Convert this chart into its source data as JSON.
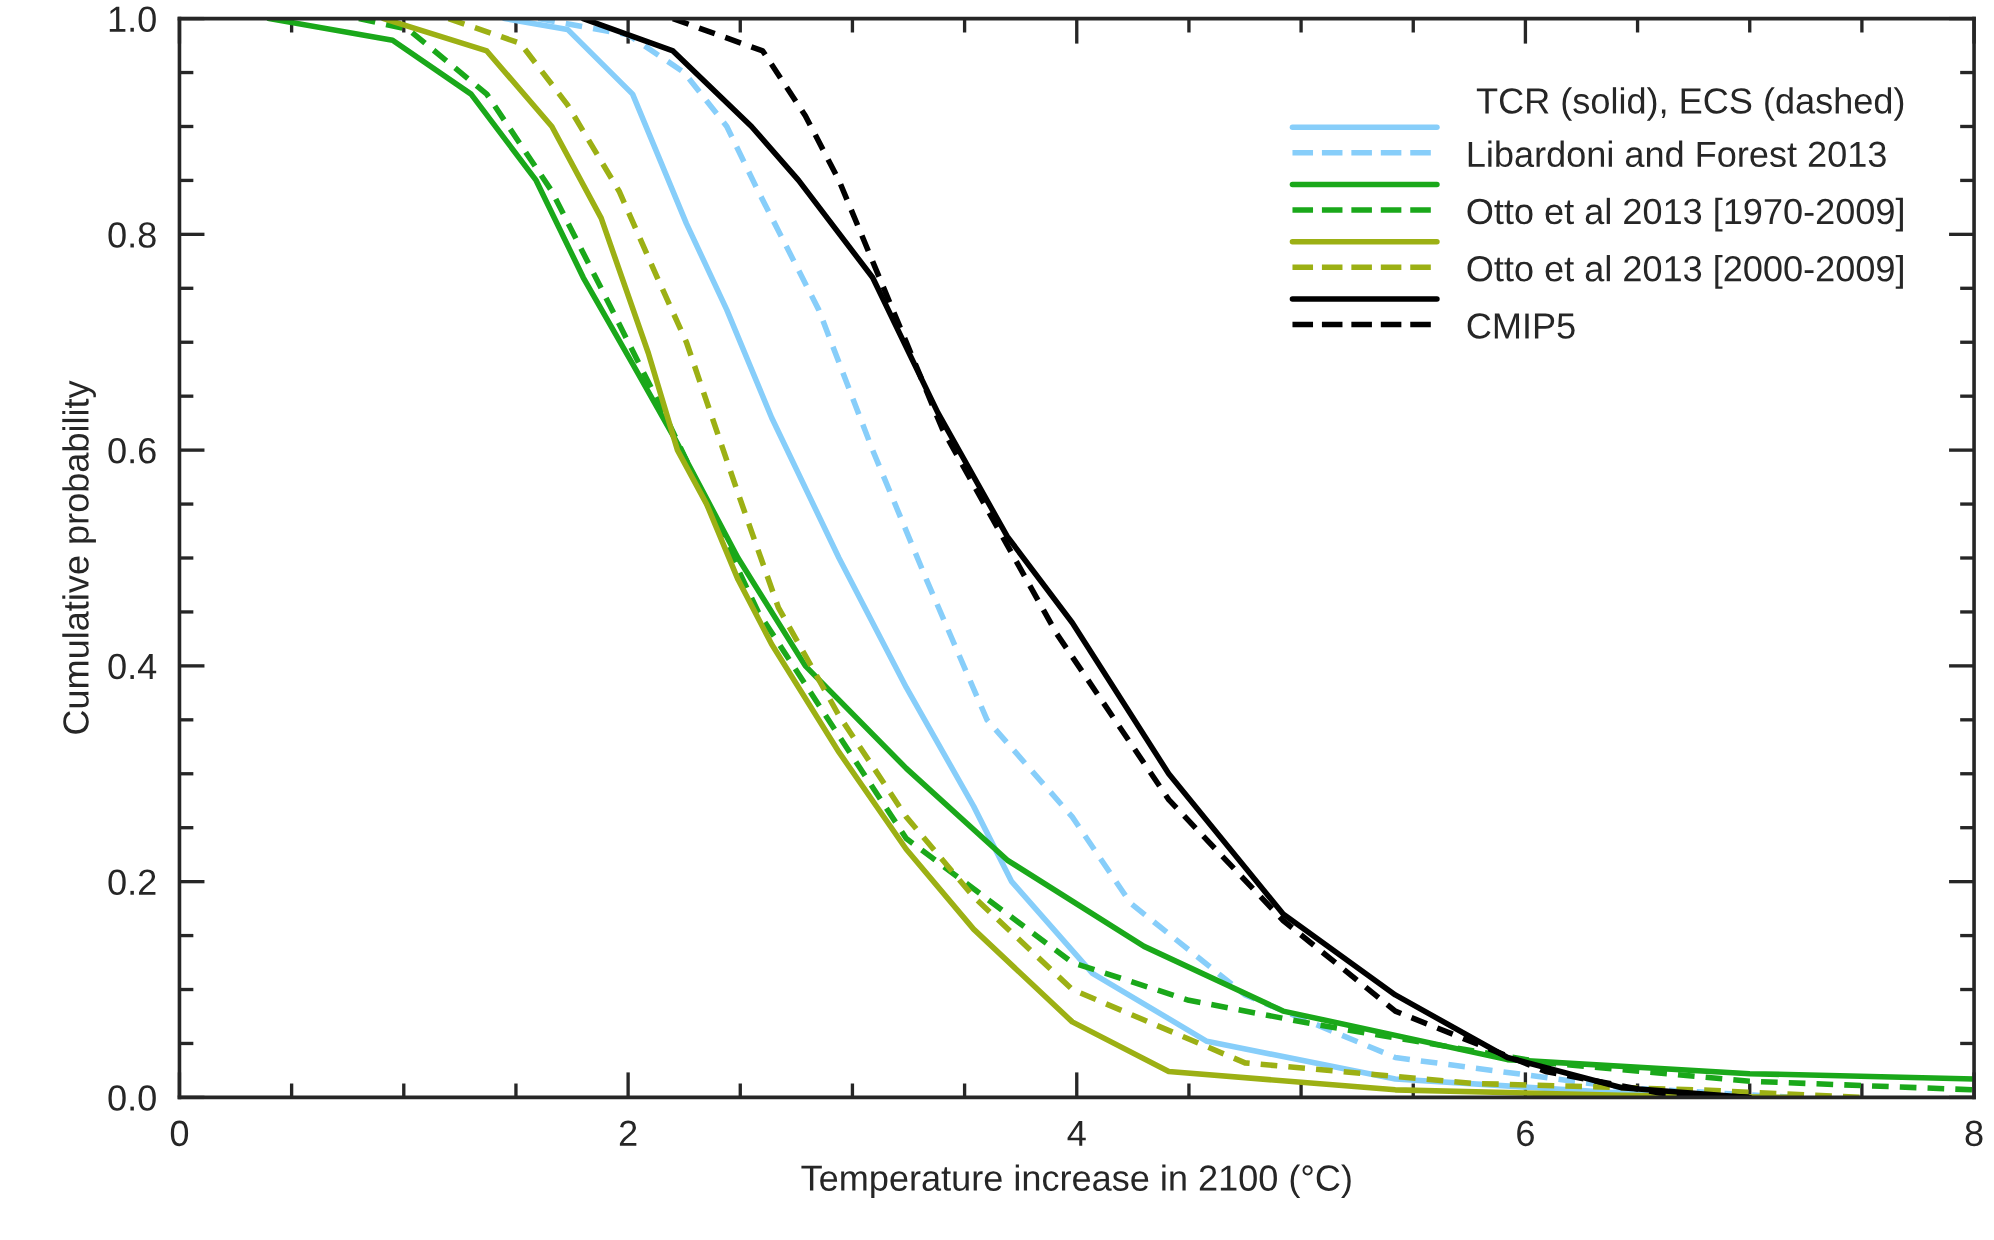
{
  "chart_data": {
    "type": "line",
    "xlabel": "Temperature increase in 2100 (°C)",
    "ylabel": "Cumulative probability",
    "legend_title": "TCR (solid), ECS (dashed)",
    "legend": "top right",
    "grid": false,
    "xlim": [
      0,
      8
    ],
    "ylim": [
      0,
      1
    ],
    "xticks": [
      0,
      2,
      4,
      6,
      8
    ],
    "yticks": [
      {
        "value": 0,
        "label": "0.0"
      },
      {
        "value": 0.2,
        "label": "0.2"
      },
      {
        "value": 0.4,
        "label": "0.4"
      },
      {
        "value": 0.6,
        "label": "0.6"
      },
      {
        "value": 0.8,
        "label": "0.8"
      },
      {
        "value": 1,
        "label": "1.0"
      }
    ],
    "series": [
      {
        "name": "Libardoni and Forest 2013",
        "color": "#87cefa",
        "line_style": "solid",
        "x": [
          1.45,
          1.73,
          2.02,
          2.26,
          2.44,
          2.64,
          2.94,
          3.24,
          3.54,
          3.71,
          4.07,
          4.58,
          5.42,
          6.43,
          7.0
        ],
        "values": [
          1.0,
          0.99,
          0.93,
          0.81,
          0.73,
          0.63,
          0.5,
          0.38,
          0.27,
          0.2,
          0.115,
          0.052,
          0.017,
          0.004,
          0.0
        ]
      },
      {
        "color": "#87cefa",
        "line_style": "dashed",
        "x": [
          1.6,
          2.0,
          2.25,
          2.44,
          2.58,
          2.85,
          3.09,
          3.33,
          3.6,
          3.98,
          4.24,
          4.75,
          5.42,
          6.43,
          7.2
        ],
        "values": [
          1.0,
          0.985,
          0.95,
          0.9,
          0.84,
          0.73,
          0.6,
          0.48,
          0.35,
          0.26,
          0.18,
          0.095,
          0.037,
          0.009,
          0.0
        ]
      },
      {
        "name": "Otto et al 2013 [1970-2009]",
        "color": "#1aa81a",
        "line_style": "solid",
        "x": [
          0.4,
          0.95,
          1.3,
          1.59,
          1.8,
          2.02,
          2.21,
          2.49,
          2.79,
          3.24,
          3.69,
          4.3,
          4.92,
          5.92,
          7.0,
          8.0
        ],
        "values": [
          1.0,
          0.98,
          0.93,
          0.85,
          0.76,
          0.68,
          0.61,
          0.5,
          0.4,
          0.305,
          0.22,
          0.14,
          0.08,
          0.035,
          0.022,
          0.017
        ]
      },
      {
        "color": "#1aa81a",
        "line_style": "dashed",
        "x": [
          0.8,
          1.02,
          1.37,
          1.66,
          1.88,
          2.17,
          2.58,
          2.94,
          3.24,
          3.98,
          4.5,
          5.08,
          6.09,
          7.0,
          8.0
        ],
        "values": [
          1.0,
          0.99,
          0.93,
          0.84,
          0.75,
          0.63,
          0.45,
          0.335,
          0.24,
          0.125,
          0.09,
          0.067,
          0.032,
          0.015,
          0.007
        ]
      },
      {
        "name": "Otto et al 2013 [2000-2009]",
        "color": "#9cb014",
        "line_style": "solid",
        "x": [
          0.91,
          1.37,
          1.66,
          1.88,
          2.09,
          2.22,
          2.35,
          2.49,
          2.64,
          2.94,
          3.24,
          3.54,
          3.98,
          4.41,
          5.42,
          6.43,
          7.2
        ],
        "values": [
          1.0,
          0.97,
          0.9,
          0.815,
          0.69,
          0.6,
          0.55,
          0.48,
          0.42,
          0.32,
          0.23,
          0.156,
          0.07,
          0.024,
          0.007,
          0.002,
          0.0
        ]
      },
      {
        "color": "#9cb014",
        "line_style": "dashed",
        "x": [
          1.2,
          1.52,
          1.73,
          1.96,
          2.13,
          2.26,
          2.49,
          2.67,
          2.94,
          3.24,
          3.54,
          3.98,
          4.75,
          5.76,
          6.77,
          7.5
        ],
        "values": [
          1.0,
          0.977,
          0.92,
          0.84,
          0.76,
          0.7,
          0.56,
          0.454,
          0.354,
          0.26,
          0.186,
          0.1,
          0.032,
          0.013,
          0.007,
          0.0
        ]
      },
      {
        "name": "CMIP5",
        "color": "#000000",
        "line_style": "solid",
        "x": [
          1.8,
          2.2,
          2.55,
          2.76,
          3.09,
          3.38,
          3.69,
          3.98,
          4.41,
          4.92,
          5.42,
          5.92,
          6.43,
          7.0
        ],
        "values": [
          1.0,
          0.97,
          0.9,
          0.85,
          0.76,
          0.635,
          0.52,
          0.44,
          0.3,
          0.17,
          0.095,
          0.037,
          0.009,
          0.0
        ]
      },
      {
        "color": "#000000",
        "line_style": "dashed",
        "x": [
          2.2,
          2.6,
          2.79,
          2.94,
          3.4,
          3.91,
          4.41,
          4.92,
          5.42,
          6.09,
          6.6,
          7.0
        ],
        "values": [
          1.0,
          0.97,
          0.91,
          0.85,
          0.62,
          0.43,
          0.276,
          0.164,
          0.08,
          0.024,
          0.004,
          0.0
        ]
      }
    ]
  }
}
